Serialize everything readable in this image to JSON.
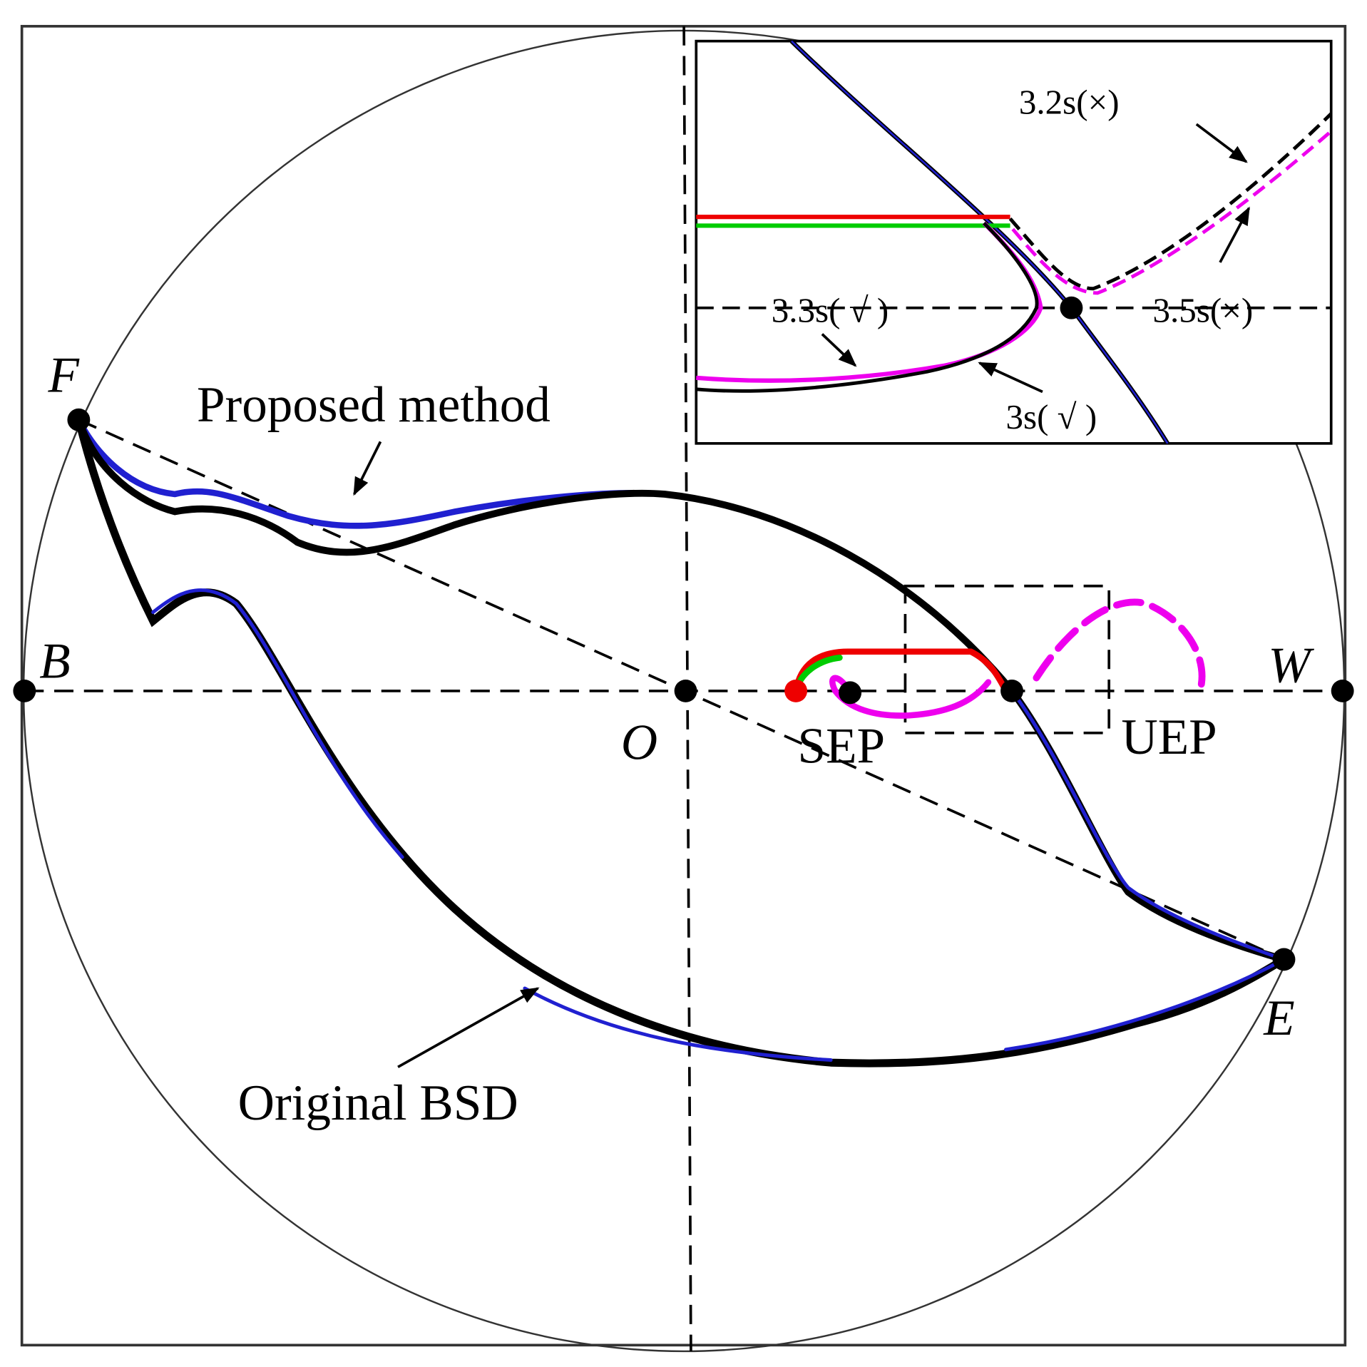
{
  "labels": {
    "F": "F",
    "B": "B",
    "O": "O",
    "W": "W",
    "E": "E",
    "SEP": "SEP",
    "UEP": "UEP",
    "proposed": "Proposed method",
    "original": "Original BSD"
  },
  "inset": {
    "labels": [
      "3.2s(×)",
      "3.5s(×)",
      "3.3s( √ )",
      "3s( √ )"
    ]
  }
}
